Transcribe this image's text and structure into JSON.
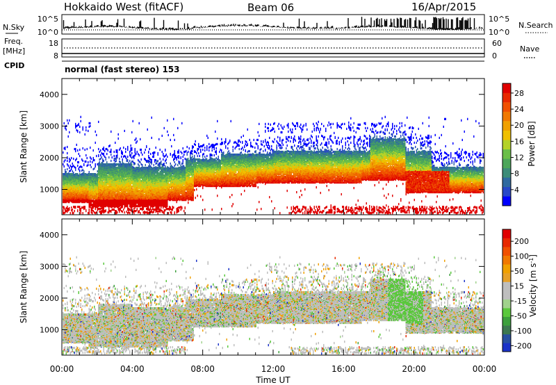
{
  "header": {
    "title": "Hokkaido West (fitACF)",
    "beam": "Beam 06",
    "date": "16/Apr/2015"
  },
  "top_panels": {
    "nsky_label": "N.Sky",
    "nsearch_label": "N.Search",
    "count_ticks": [
      "10^5",
      "10^0"
    ],
    "freq_label_line1": "Freq.",
    "freq_label_line2": "[MHz]",
    "freq_ticks": [
      18,
      8
    ],
    "nave_label": "Nave",
    "nave_ticks": [
      60,
      0
    ],
    "cpid_label": "CPID",
    "cpid_text": "normal (fast stereo) 153"
  },
  "chart_data": [
    {
      "type": "heatmap",
      "name": "power",
      "ylabel": "Slant Range [km]",
      "yticks": [
        1000,
        2000,
        3000,
        4000
      ],
      "ylim": [
        200,
        4500
      ],
      "x_ticks": [
        "00:00",
        "04:00",
        "08:00",
        "12:00",
        "16:00",
        "20:00",
        "00:00"
      ],
      "xlim_hours": [
        0,
        24
      ],
      "colorbar": {
        "label": "Power [dB]",
        "ticks": [
          4,
          8,
          12,
          16,
          20,
          24,
          28
        ],
        "colors": [
          "#0000ff",
          "#2848c8",
          "#2f6aa0",
          "#3c8c78",
          "#4ca65a",
          "#6abf48",
          "#b4d228",
          "#f0c000",
          "#f0a000",
          "#f07800",
          "#f05000",
          "#e82800",
          "#e00000"
        ]
      }
    },
    {
      "type": "heatmap",
      "name": "velocity",
      "ylabel": "Slant Range [km]",
      "yticks": [
        1000,
        2000,
        3000,
        4000
      ],
      "ylim": [
        200,
        4500
      ],
      "x_ticks": [
        "00:00",
        "04:00",
        "08:00",
        "12:00",
        "16:00",
        "20:00",
        "00:00"
      ],
      "xlim_hours": [
        0,
        24
      ],
      "xlabel": "Time UT",
      "colorbar": {
        "label": "Velocity [m s^-1]",
        "ticks": [
          "200",
          "100",
          "50",
          "15",
          "-15",
          "-50",
          "-100",
          "-200"
        ],
        "colors": [
          "#1a32c8",
          "#2850a0",
          "#3c7850",
          "#3ca03c",
          "#5ac83c",
          "#a0d28c",
          "#bebebe",
          "#bebebe",
          "#e6a028",
          "#f0a000",
          "#f07800",
          "#f05000",
          "#e82800",
          "#e00000"
        ]
      }
    }
  ]
}
